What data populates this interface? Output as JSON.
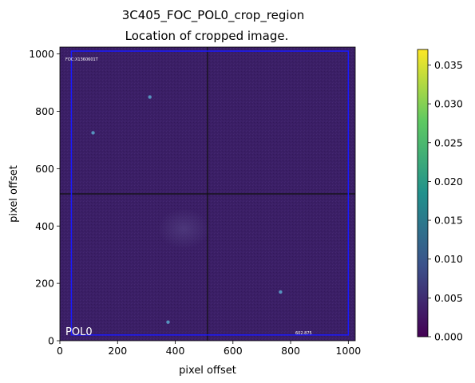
{
  "chart_data": {
    "type": "heatmap",
    "title": "3C405_FOC_POL0_crop_region",
    "subtitle": "Location of cropped image.",
    "xlabel": "pixel offset",
    "ylabel": "pixel offset",
    "xlim": [
      0,
      1024
    ],
    "ylim": [
      0,
      1024
    ],
    "x_ticks": [
      0,
      200,
      400,
      600,
      800,
      1000
    ],
    "y_ticks": [
      0,
      200,
      400,
      600,
      800,
      1000
    ],
    "image_label": "POL0",
    "header_text": "FOC:X1360601T",
    "corner_value": "602.875",
    "colormap": "viridis",
    "background_color": "#3b1f66",
    "crosshair": {
      "x": 512,
      "y": 512
    },
    "crop_region": {
      "x0": 40,
      "x1": 1000,
      "y0": 20,
      "y1": 1010,
      "color": "#1a1aff"
    },
    "bright_spots": [
      {
        "x": 312,
        "y": 850
      },
      {
        "x": 115,
        "y": 725
      },
      {
        "x": 765,
        "y": 170
      },
      {
        "x": 375,
        "y": 65
      }
    ],
    "diffuse_region": {
      "x": 430,
      "y": 390,
      "rx": 90,
      "ry": 70
    },
    "colorbar": {
      "min": 0.0,
      "max": 0.037,
      "ticks": [
        0.0,
        0.005,
        0.01,
        0.015,
        0.02,
        0.025,
        0.03,
        0.035
      ],
      "tick_labels": [
        "0.000",
        "0.005",
        "0.010",
        "0.015",
        "0.020",
        "0.025",
        "0.030",
        "0.035"
      ],
      "colors": [
        "#440154",
        "#3b528b",
        "#21918c",
        "#5ec962",
        "#fde725"
      ]
    }
  }
}
